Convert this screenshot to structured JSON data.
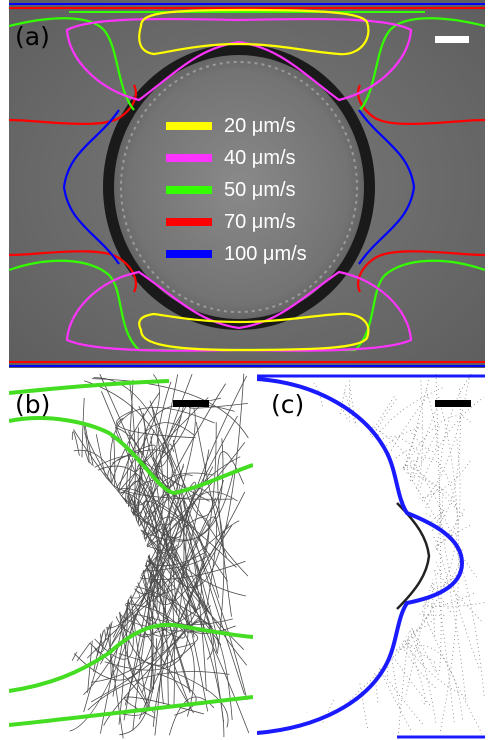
{
  "panels": {
    "a": {
      "label": "(a)"
    },
    "b": {
      "label": "(b)"
    },
    "c": {
      "label": "(c)"
    }
  },
  "legend": [
    {
      "label": "20 μm/s",
      "color": "#ffff00"
    },
    {
      "label": "40 μm/s",
      "color": "#ff33ff"
    },
    {
      "label": "50 μm/s",
      "color": "#33ff00"
    },
    {
      "label": "70 μm/s",
      "color": "#ff0000"
    },
    {
      "label": "100 μm/s",
      "color": "#0000ff"
    }
  ],
  "colors": {
    "panel_b_curve": "#44dd22",
    "panel_c_curve": "#1a1aff",
    "scalebar_a": "#ffffff",
    "scalebar_bc": "#000000"
  }
}
